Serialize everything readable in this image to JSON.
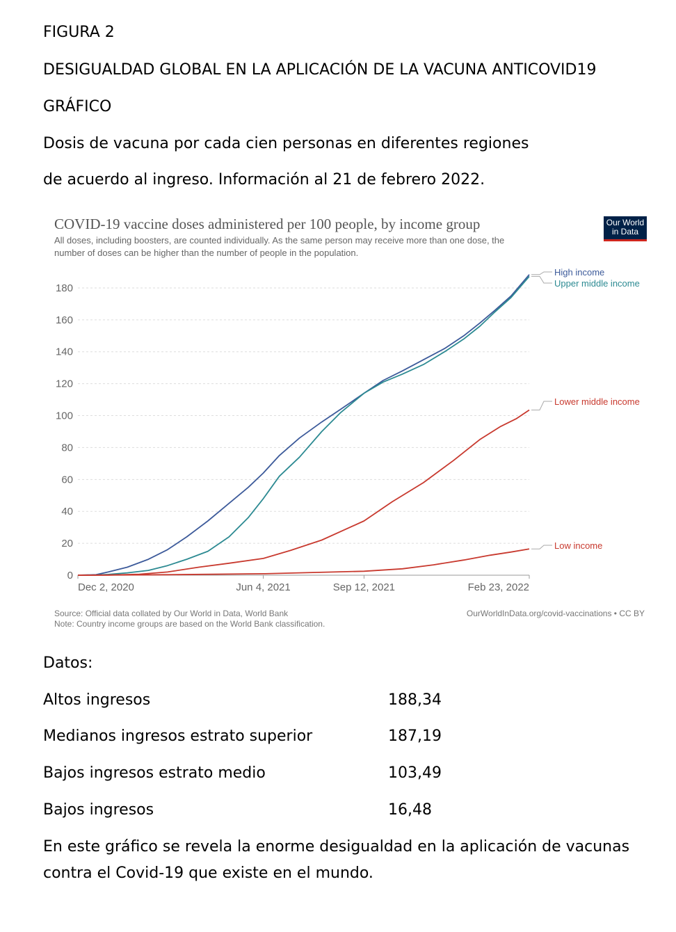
{
  "document": {
    "figure_label": "FIGURA 2",
    "heading": "DESIGUALDAD GLOBAL EN LA APLICACIÓN DE LA VACUNA ANTICOVID19",
    "subheading": "GRÁFICO",
    "description_line1": "Dosis de vacuna por cada cien personas en diferentes regiones",
    "description_line2": "de acuerdo al ingreso. Información al 21 de febrero 2022.",
    "data_heading": "Datos:",
    "data_rows": [
      {
        "label": "Altos ingresos",
        "value": "188,34"
      },
      {
        "label": "Medianos ingresos estrato superior",
        "value": "187,19"
      },
      {
        "label": "Bajos ingresos estrato medio",
        "value": "103,49"
      },
      {
        "label": "Bajos ingresos",
        "value": "16,48"
      }
    ],
    "conclusion_line1": "En este gráfico se revela la enorme desigualdad en la aplicación de vacunas",
    "conclusion_line2": "contra el Covid-19 que existe en el mundo."
  },
  "logo": {
    "line1": "Our World",
    "line2": "in Data"
  },
  "chart_data": {
    "type": "line",
    "title": "COVID-19 vaccine doses administered per 100 people, by income group",
    "subtitle_line1": "All doses, including boosters, are counted individually. As the same person may receive more than one dose, the",
    "subtitle_line2": "number of doses can be higher than the number of people in the population.",
    "source": "Source: Official data collated by Our World in Data, World Bank",
    "note": "Note: Country income groups are based on the World Bank classification.",
    "credit": "OurWorldInData.org/covid-vaccinations • CC BY",
    "x_range": [
      "2020-12-02",
      "2022-02-23"
    ],
    "x_tick_labels": [
      {
        "date": "2020-12-02",
        "label": "Dec 2, 2020"
      },
      {
        "date": "2021-06-04",
        "label": "Jun 4, 2021"
      },
      {
        "date": "2021-09-12",
        "label": "Sep 12, 2021"
      },
      {
        "date": "2022-02-23",
        "label": "Feb 23, 2022"
      }
    ],
    "ylim": [
      0,
      190
    ],
    "yticks": [
      0,
      20,
      40,
      60,
      80,
      100,
      120,
      140,
      160,
      180
    ],
    "grid": true,
    "legend_placement": "right",
    "series": [
      {
        "name": "High income",
        "color": "#3c5a9a",
        "points": [
          [
            "2020-12-02",
            0
          ],
          [
            "2020-12-20",
            0.3
          ],
          [
            "2021-01-01",
            2
          ],
          [
            "2021-01-20",
            5
          ],
          [
            "2021-02-10",
            10
          ],
          [
            "2021-03-01",
            16
          ],
          [
            "2021-03-20",
            24
          ],
          [
            "2021-04-10",
            34
          ],
          [
            "2021-05-01",
            45
          ],
          [
            "2021-05-20",
            55
          ],
          [
            "2021-06-04",
            64
          ],
          [
            "2021-06-20",
            75
          ],
          [
            "2021-07-10",
            86
          ],
          [
            "2021-08-01",
            96
          ],
          [
            "2021-08-20",
            104
          ],
          [
            "2021-09-12",
            114
          ],
          [
            "2021-10-01",
            122
          ],
          [
            "2021-10-20",
            128
          ],
          [
            "2021-11-10",
            135
          ],
          [
            "2021-12-01",
            142
          ],
          [
            "2021-12-20",
            150
          ],
          [
            "2022-01-05",
            158
          ],
          [
            "2022-01-20",
            166
          ],
          [
            "2022-02-05",
            175
          ],
          [
            "2022-02-23",
            188.34
          ]
        ]
      },
      {
        "name": "Upper middle income",
        "color": "#2c8a92",
        "points": [
          [
            "2020-12-02",
            0
          ],
          [
            "2020-12-20",
            0.1
          ],
          [
            "2021-01-01",
            0.5
          ],
          [
            "2021-01-20",
            1.5
          ],
          [
            "2021-02-10",
            3
          ],
          [
            "2021-03-01",
            6
          ],
          [
            "2021-03-20",
            10
          ],
          [
            "2021-04-10",
            15
          ],
          [
            "2021-05-01",
            24
          ],
          [
            "2021-05-20",
            36
          ],
          [
            "2021-06-04",
            48
          ],
          [
            "2021-06-20",
            62
          ],
          [
            "2021-07-10",
            74
          ],
          [
            "2021-08-01",
            90
          ],
          [
            "2021-08-20",
            102
          ],
          [
            "2021-09-12",
            114
          ],
          [
            "2021-10-01",
            121
          ],
          [
            "2021-10-20",
            126
          ],
          [
            "2021-11-10",
            132
          ],
          [
            "2021-12-01",
            140
          ],
          [
            "2021-12-20",
            148
          ],
          [
            "2022-01-05",
            156
          ],
          [
            "2022-01-20",
            165
          ],
          [
            "2022-02-05",
            174
          ],
          [
            "2022-02-23",
            187.19
          ]
        ]
      },
      {
        "name": "Lower middle income",
        "color": "#c8392e",
        "points": [
          [
            "2020-12-02",
            0
          ],
          [
            "2021-01-01",
            0.1
          ],
          [
            "2021-02-01",
            0.6
          ],
          [
            "2021-03-01",
            2
          ],
          [
            "2021-04-01",
            5
          ],
          [
            "2021-05-01",
            7.5
          ],
          [
            "2021-06-04",
            10.5
          ],
          [
            "2021-07-01",
            15.5
          ],
          [
            "2021-08-01",
            22
          ],
          [
            "2021-09-12",
            34
          ],
          [
            "2021-10-10",
            46
          ],
          [
            "2021-11-10",
            58
          ],
          [
            "2021-12-10",
            72
          ],
          [
            "2022-01-05",
            85
          ],
          [
            "2022-01-25",
            93
          ],
          [
            "2022-02-10",
            98
          ],
          [
            "2022-02-23",
            103.49
          ]
        ]
      },
      {
        "name": "Low income",
        "color": "#c8392e",
        "points": [
          [
            "2020-12-02",
            0
          ],
          [
            "2021-03-01",
            0.3
          ],
          [
            "2021-06-04",
            0.9
          ],
          [
            "2021-09-12",
            2.5
          ],
          [
            "2021-10-20",
            4
          ],
          [
            "2021-11-20",
            6.5
          ],
          [
            "2021-12-20",
            9.5
          ],
          [
            "2022-01-15",
            12.5
          ],
          [
            "2022-02-05",
            14.5
          ],
          [
            "2022-02-23",
            16.48
          ]
        ]
      }
    ]
  }
}
